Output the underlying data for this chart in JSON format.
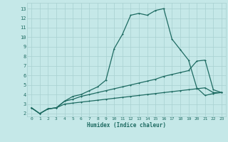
{
  "xlabel": "Humidex (Indice chaleur)",
  "background_color": "#c5e8e8",
  "grid_color": "#a8d0d0",
  "line_color": "#1e6b62",
  "xlim": [
    -0.5,
    23.5
  ],
  "ylim": [
    1.7,
    13.6
  ],
  "xticks": [
    0,
    1,
    2,
    3,
    4,
    5,
    6,
    7,
    8,
    9,
    10,
    11,
    12,
    13,
    14,
    15,
    16,
    17,
    18,
    19,
    20,
    21,
    22,
    23
  ],
  "yticks": [
    2,
    3,
    4,
    5,
    6,
    7,
    8,
    9,
    10,
    11,
    12,
    13
  ],
  "s1_x": [
    0,
    1,
    2,
    3,
    4,
    5,
    6,
    7,
    8,
    9,
    10,
    11,
    12,
    13,
    14,
    15,
    16,
    17,
    18,
    19,
    20,
    21,
    22,
    23
  ],
  "s1_y": [
    2.6,
    2.0,
    2.5,
    2.6,
    3.3,
    3.8,
    4.0,
    4.4,
    4.8,
    5.5,
    8.8,
    10.3,
    12.3,
    12.5,
    12.3,
    12.8,
    13.0,
    9.8,
    8.7,
    7.6,
    4.7,
    3.9,
    4.1,
    4.2
  ],
  "s2_x": [
    0,
    1,
    2,
    3,
    4,
    5,
    6,
    7,
    8,
    9,
    10,
    11,
    12,
    13,
    14,
    15,
    16,
    17,
    18,
    19,
    20,
    21,
    22,
    23
  ],
  "s2_y": [
    2.6,
    2.0,
    2.5,
    2.6,
    3.3,
    3.5,
    3.8,
    4.0,
    4.2,
    4.4,
    4.6,
    4.8,
    5.0,
    5.2,
    5.4,
    5.6,
    5.9,
    6.1,
    6.3,
    6.5,
    7.5,
    7.6,
    4.5,
    4.2
  ],
  "s3_x": [
    0,
    1,
    2,
    3,
    4,
    5,
    6,
    7,
    8,
    9,
    10,
    11,
    12,
    13,
    14,
    15,
    16,
    17,
    18,
    19,
    20,
    21,
    22,
    23
  ],
  "s3_y": [
    2.6,
    2.0,
    2.5,
    2.6,
    3.0,
    3.1,
    3.2,
    3.3,
    3.4,
    3.5,
    3.6,
    3.7,
    3.8,
    3.9,
    4.0,
    4.1,
    4.2,
    4.3,
    4.4,
    4.5,
    4.6,
    4.7,
    4.2,
    4.2
  ]
}
